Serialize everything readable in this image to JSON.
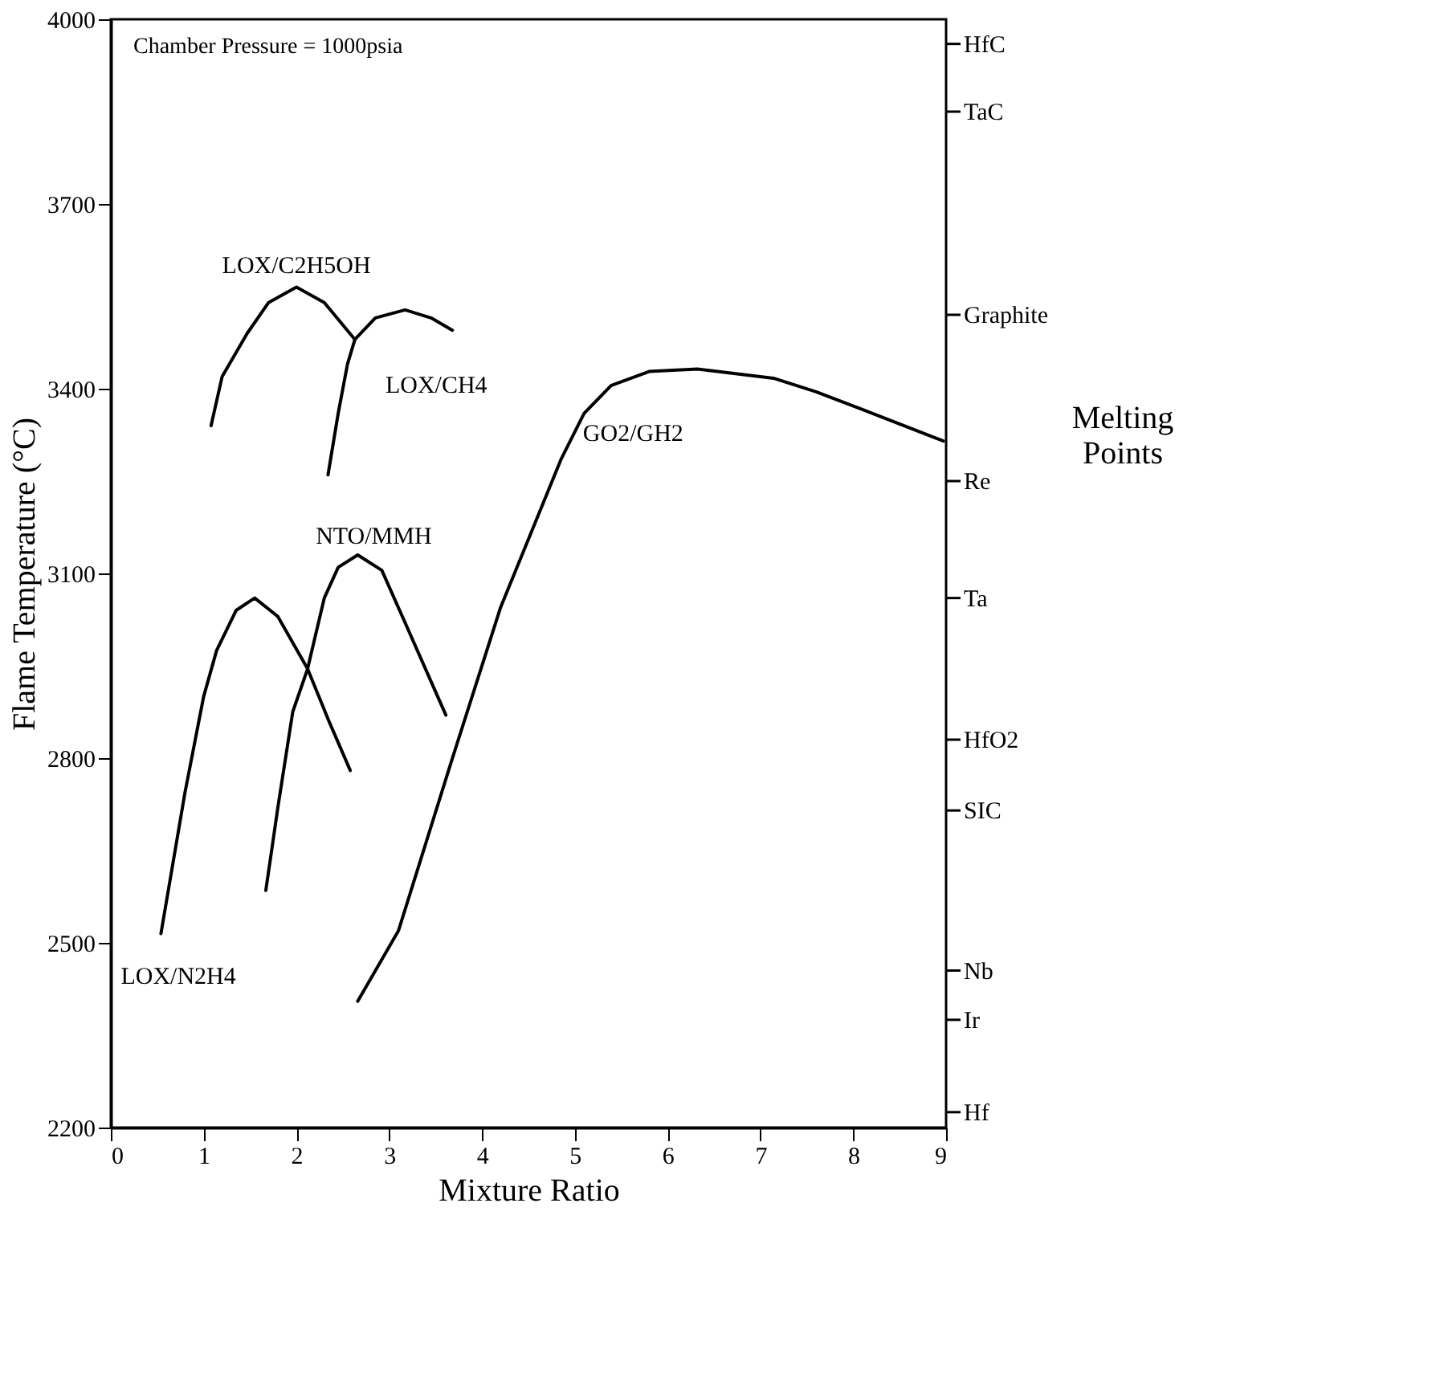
{
  "chart_data": {
    "type": "line",
    "xlabel": "Mixture Ratio",
    "ylabel": "Flame Temperature (°C)",
    "annotations": [
      "Chamber Pressure = 1000psia",
      "Melting Points"
    ],
    "ref_lines": [
      {
        "axis": "y",
        "value": 3960,
        "label": "HfC"
      },
      {
        "axis": "y",
        "value": 3850,
        "label": "TaC"
      },
      {
        "axis": "y",
        "value": 3520,
        "label": "Graphite"
      },
      {
        "axis": "y",
        "value": 3250,
        "label": "Re"
      },
      {
        "axis": "y",
        "value": 3060,
        "label": "Ta"
      },
      {
        "axis": "y",
        "value": 2830,
        "label": "HfO2"
      },
      {
        "axis": "y",
        "value": 2715,
        "label": "SIC"
      },
      {
        "axis": "y",
        "value": 2455,
        "label": "Nb"
      },
      {
        "axis": "y",
        "value": 2375,
        "label": "Ir"
      },
      {
        "axis": "y",
        "value": 2225,
        "label": "Hf"
      }
    ],
    "xlim": [
      0,
      9
    ],
    "xticks": [
      0,
      1,
      2,
      3,
      4,
      5,
      6,
      7,
      8,
      9
    ],
    "ylim": [
      2200,
      4000
    ],
    "yticks": [
      2200,
      2500,
      2800,
      3100,
      3400,
      3700,
      4000
    ],
    "grid": false,
    "legend": false,
    "line_style": "solid",
    "series": [
      {
        "name": "LOX/C2H5OH",
        "color": "#000000",
        "x": [
          1.08,
          1.2,
          1.47,
          1.7,
          2.0,
          2.3,
          2.63
        ],
        "values": [
          3340,
          3420,
          3490,
          3540,
          3565,
          3540,
          3480
        ]
      },
      {
        "name": "LOX/CH4",
        "color": "#000000",
        "x": [
          2.34,
          2.45,
          2.55,
          2.63,
          2.85,
          3.17,
          3.45,
          3.68
        ],
        "values": [
          3260,
          3360,
          3440,
          3480,
          3515,
          3528,
          3515,
          3495
        ]
      },
      {
        "name": "LOX/N2H4",
        "color": "#000000",
        "x": [
          0.54,
          0.8,
          1.0,
          1.14,
          1.35,
          1.55,
          1.8,
          2.12,
          2.35,
          2.58
        ],
        "values": [
          2515,
          2745,
          2900,
          2975,
          3040,
          3060,
          3030,
          2945,
          2860,
          2780
        ]
      },
      {
        "name": "NTO/MMH",
        "color": "#000000",
        "x": [
          1.67,
          1.8,
          1.96,
          2.12,
          2.3,
          2.45,
          2.66,
          2.92,
          3.2,
          3.61
        ],
        "values": [
          2585,
          2720,
          2875,
          2945,
          3060,
          3110,
          3130,
          3105,
          3010,
          2870
        ]
      },
      {
        "name": "GO2/GH2",
        "color": "#000000",
        "x": [
          2.66,
          3.1,
          3.66,
          4.2,
          4.85,
          5.1,
          5.39,
          5.8,
          6.32,
          7.14,
          7.6,
          8.12,
          8.97
        ],
        "values": [
          2405,
          2520,
          2790,
          3045,
          3285,
          3360,
          3405,
          3428,
          3432,
          3417,
          3395,
          3365,
          3315
        ]
      }
    ]
  }
}
